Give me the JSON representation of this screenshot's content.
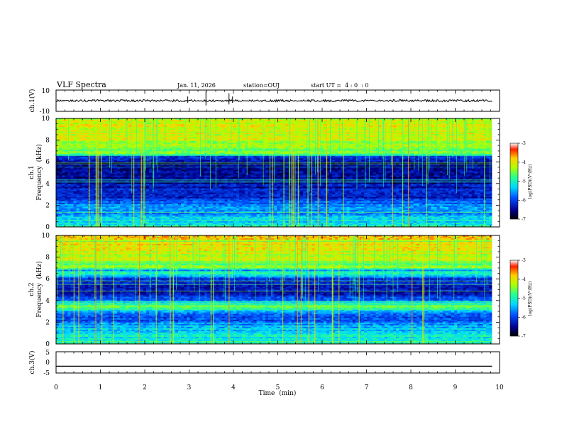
{
  "header": {
    "title": "VLF Spectra",
    "date": "Jan. 11, 2026",
    "station": "station=OUJ",
    "start_ut": "start UT =  4 : 0  : 0"
  },
  "chart_data": [
    {
      "type": "line",
      "name": "ch1-waveform",
      "ylabel": "ch.1(V)",
      "ylim": [
        -10,
        10
      ],
      "ytick_labels": [
        "10",
        "-10"
      ],
      "baseline": 0,
      "description_values": {
        "typical_amplitude_V": 1,
        "spike_times_min": [
          2.97,
          3.38,
          3.9,
          3.98
        ]
      }
    },
    {
      "type": "heatmap",
      "name": "ch1-spectrogram",
      "ylabel_line1": "ch.1",
      "ylabel_line2": "Frequency  (kHz)",
      "ylim": [
        0,
        10
      ],
      "ytick_labels": [
        "0",
        "2",
        "4",
        "6",
        "8",
        "10"
      ],
      "band_profile": [
        [
          0,
          0.5
        ],
        [
          0.5,
          0.45
        ],
        [
          1,
          0.4
        ],
        [
          1.6,
          0.35
        ],
        [
          2,
          0.3
        ],
        [
          2.6,
          0.22
        ],
        [
          3,
          0.2
        ],
        [
          3.6,
          0.18
        ],
        [
          4,
          0.15
        ],
        [
          4.6,
          0.12
        ],
        [
          5,
          0.1
        ],
        [
          5.6,
          0.08
        ],
        [
          6,
          0.12
        ],
        [
          6.5,
          0.2
        ],
        [
          6.7,
          0.55
        ],
        [
          7,
          0.62
        ],
        [
          8,
          0.7
        ],
        [
          9,
          0.72
        ],
        [
          10,
          0.72
        ]
      ],
      "colorbar": {
        "label": "log(PSD)(V²/Hz)",
        "range": [
          -7,
          -3
        ],
        "tick_labels": [
          "-3",
          "-4",
          "-5",
          "-6",
          "-7"
        ]
      }
    },
    {
      "type": "heatmap",
      "name": "ch2-spectrogram",
      "ylabel_line1": "ch.2",
      "ylabel_line2": "Frequency  (kHz)",
      "ylim": [
        0,
        10
      ],
      "ytick_labels": [
        "0",
        "2",
        "4",
        "6",
        "8",
        "10"
      ],
      "band_profile": [
        [
          0,
          0.55
        ],
        [
          0.5,
          0.5
        ],
        [
          1,
          0.42
        ],
        [
          1.6,
          0.38
        ],
        [
          2,
          0.3
        ],
        [
          2.6,
          0.3
        ],
        [
          3,
          0.42
        ],
        [
          3.4,
          0.6
        ],
        [
          3.7,
          0.55
        ],
        [
          4,
          0.3
        ],
        [
          4.6,
          0.2
        ],
        [
          5,
          0.15
        ],
        [
          5.6,
          0.18
        ],
        [
          6,
          0.2
        ],
        [
          6.4,
          0.45
        ],
        [
          6.6,
          0.5
        ],
        [
          6.8,
          0.3
        ],
        [
          7,
          0.6
        ],
        [
          8,
          0.72
        ],
        [
          9,
          0.75
        ],
        [
          10,
          0.75
        ]
      ],
      "colorbar": {
        "label": "log(PSD)(V²/Hz)",
        "range": [
          -7,
          -3
        ],
        "tick_labels": [
          "-3",
          "-4",
          "-5",
          "-6",
          "-7"
        ]
      }
    },
    {
      "type": "line",
      "name": "ch3-waveform",
      "ylabel": "ch.3(V)",
      "ylim": [
        -5,
        5
      ],
      "ytick_labels": [
        "5",
        "0",
        "-5"
      ],
      "values_constant": -1.8
    }
  ],
  "xaxis": {
    "label": "Time  (min)",
    "range": [
      0,
      10
    ],
    "tick_labels": [
      "0",
      "1",
      "2",
      "3",
      "4",
      "5",
      "6",
      "7",
      "8",
      "9",
      "10"
    ],
    "data_end": 9.83
  }
}
